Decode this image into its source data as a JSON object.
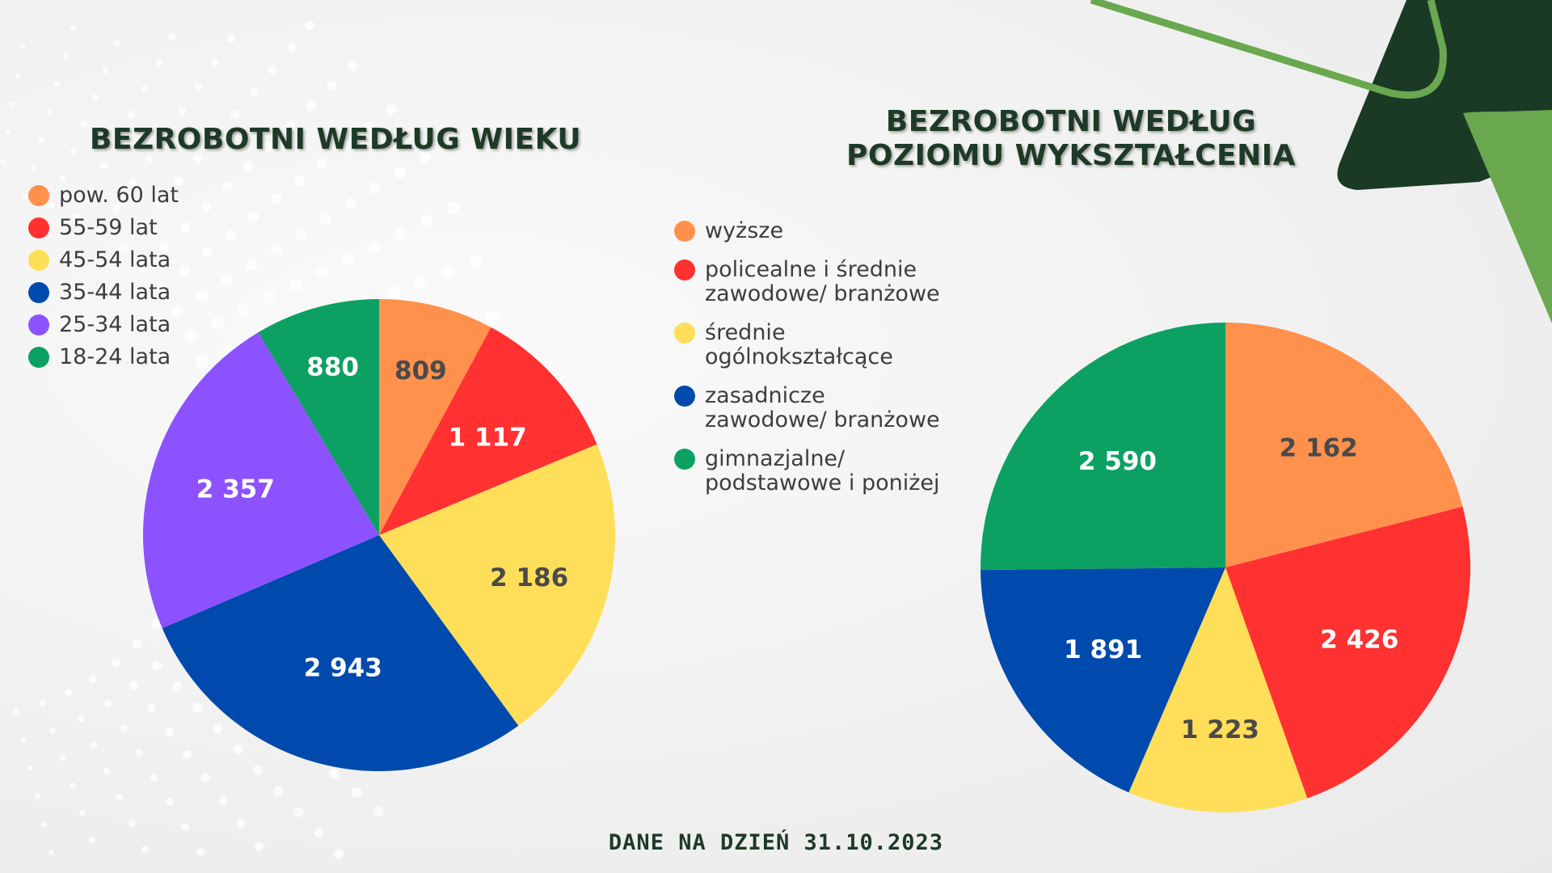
{
  "chart_data": [
    {
      "type": "pie",
      "title": "BEZROBOTNI WEDŁUG WIEKU",
      "legend_position": "top-left",
      "slices": [
        {
          "label": "pow. 60 lat",
          "value": 809,
          "display": "809",
          "color": "#FF914D",
          "text_color": "#4a4a4a"
        },
        {
          "label": "55-59 lat",
          "value": 1117,
          "display": "1 117",
          "color": "#FF3131",
          "text_color": "#ffffff"
        },
        {
          "label": "45-54 lata",
          "value": 2186,
          "display": "2 186",
          "color": "#FFDE59",
          "text_color": "#4a4a4a"
        },
        {
          "label": "35-44 lata",
          "value": 2943,
          "display": "2 943",
          "color": "#004AAD",
          "text_color": "#ffffff"
        },
        {
          "label": "25-34 lata",
          "value": 2357,
          "display": "2 357",
          "color": "#8C52FF",
          "text_color": "#ffffff"
        },
        {
          "label": "18-24 lata",
          "value": 880,
          "display": "880",
          "color": "#0CA063",
          "text_color": "#ffffff"
        }
      ]
    },
    {
      "type": "pie",
      "title": "BEZROBOTNI WEDŁUG\nPOZIOMU WYKSZTAŁCENIA",
      "legend_position": "left",
      "slices": [
        {
          "label": "wyższe",
          "value": 2162,
          "display": "2 162",
          "color": "#FF914D",
          "text_color": "#4a4a4a"
        },
        {
          "label": "policealne i średnie\nzawodowe/ branżowe",
          "value": 2426,
          "display": "2 426",
          "color": "#FF3131",
          "text_color": "#ffffff"
        },
        {
          "label": "średnie\nogólnokształcące",
          "value": 1223,
          "display": "1 223",
          "color": "#FFDE59",
          "text_color": "#4a4a4a"
        },
        {
          "label": "zasadnicze\nzawodowe/ branżowe",
          "value": 1891,
          "display": "1 891",
          "color": "#004AAD",
          "text_color": "#ffffff"
        },
        {
          "label": "gimnazjalne/\npodstawowe i poniżej",
          "value": 2590,
          "display": "2 590",
          "color": "#0CA063",
          "text_color": "#ffffff"
        }
      ]
    }
  ],
  "footnote": "DANE NA DZIEŃ 31.10.2023",
  "decoration": {
    "dark_green": "#1B3A26",
    "light_green": "#6AA84F"
  }
}
